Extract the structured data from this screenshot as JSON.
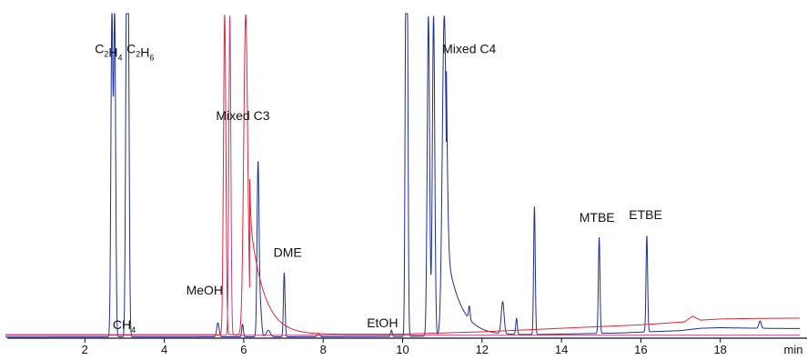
{
  "chart_data": {
    "type": "line",
    "title": "",
    "xlabel": "",
    "x_unit": "min",
    "ylabel": "",
    "xlim": [
      0,
      20
    ],
    "x_ticks": [
      2,
      4,
      6,
      8,
      10,
      12,
      14,
      16,
      18
    ],
    "grid": false,
    "legend": "none",
    "colors": {
      "trace_blue": "#1f2f8f",
      "trace_red": "#e0283a",
      "trace_magenta": "#c0407a",
      "axis": "#111111"
    },
    "series": [
      {
        "color": "#1f2f8f",
        "baseline": [
          [
            0.0,
            0.4
          ],
          [
            5.0,
            0.45
          ],
          [
            8.0,
            0.5
          ],
          [
            10.0,
            0.6
          ],
          [
            12.0,
            0.9
          ],
          [
            14.0,
            1.4
          ],
          [
            15.5,
            1.8
          ],
          [
            16.0,
            2.1
          ],
          [
            17.0,
            2.6
          ],
          [
            17.5,
            3.4
          ],
          [
            18.0,
            3.6
          ],
          [
            19.0,
            3.4
          ],
          [
            20.0,
            3.3
          ]
        ],
        "peaks": [
          {
            "t": 2.68,
            "h": 110,
            "w": 0.025
          },
          {
            "t": 2.75,
            "h": 110,
            "w": 0.025
          },
          {
            "t": 3.05,
            "h": 110,
            "w": 0.025
          },
          {
            "t": 3.09,
            "h": 110,
            "w": 0.025
          },
          {
            "t": 5.35,
            "h": 4.8,
            "w": 0.03
          },
          {
            "t": 5.97,
            "h": 4.3,
            "w": 0.02
          },
          {
            "t": 6.36,
            "h": 59,
            "w": 0.025
          },
          {
            "t": 6.42,
            "h": 10,
            "w": 0.03
          },
          {
            "t": 6.62,
            "h": 2.2,
            "w": 0.05
          },
          {
            "t": 7.02,
            "h": 22,
            "w": 0.02
          },
          {
            "t": 7.88,
            "h": 1.2,
            "w": 0.03
          },
          {
            "t": 9.72,
            "h": 2.2,
            "w": 0.02
          },
          {
            "t": 10.08,
            "h": 110,
            "w": 0.02
          },
          {
            "t": 10.12,
            "h": 110,
            "w": 0.02
          },
          {
            "t": 10.65,
            "h": 110,
            "w": 0.03
          },
          {
            "t": 10.78,
            "h": 110,
            "w": 0.03
          },
          {
            "t": 11.05,
            "h": 110,
            "w": 0.05
          },
          {
            "t": 11.68,
            "h": 4.5,
            "w": 0.02
          },
          {
            "t": 12.52,
            "h": 11,
            "w": 0.035
          },
          {
            "t": 12.87,
            "h": 5.5,
            "w": 0.02
          },
          {
            "t": 13.32,
            "h": 44,
            "w": 0.02
          },
          {
            "t": 14.95,
            "h": 33,
            "w": 0.02
          },
          {
            "t": 16.15,
            "h": 33,
            "w": 0.02
          },
          {
            "t": 19.0,
            "h": 2.5,
            "w": 0.03
          }
        ],
        "tails": [
          {
            "t": 11.1,
            "h": 30,
            "tau": 0.35
          }
        ]
      },
      {
        "color": "#e0283a",
        "baseline": [
          [
            0.0,
            1.2
          ],
          [
            6.0,
            1.2
          ],
          [
            10.0,
            1.4
          ],
          [
            12.0,
            2.2
          ],
          [
            14.0,
            3.4
          ],
          [
            16.0,
            4.6
          ],
          [
            17.1,
            5.6
          ],
          [
            17.3,
            7.6
          ],
          [
            17.5,
            6.2
          ],
          [
            18.0,
            6.6
          ],
          [
            19.0,
            6.8
          ],
          [
            20.0,
            6.9
          ]
        ],
        "peaks": [
          {
            "t": 5.52,
            "h": 110,
            "w": 0.03
          },
          {
            "t": 6.05,
            "h": 110,
            "w": 0.05
          }
        ],
        "tails": [
          {
            "t": 6.15,
            "h": 40,
            "tau": 0.35
          }
        ]
      },
      {
        "color": "#c0407a",
        "baseline": [
          [
            0.0,
            1.0
          ],
          [
            20.0,
            1.0
          ]
        ],
        "peaks": [
          {
            "t": 5.65,
            "h": 110,
            "w": 0.025
          }
        ],
        "tails": []
      }
    ],
    "annotations": [
      {
        "text": "CH",
        "sub": "4",
        "t": 2.7,
        "y": 3.2
      },
      {
        "text": "C",
        "sub": "2",
        "text2": "H",
        "sub2": "4",
        "t": 2.25,
        "y": 98
      },
      {
        "text": "C",
        "sub": "2",
        "text2": "H",
        "sub2": "6",
        "t": 3.05,
        "y": 98
      },
      {
        "text": "Mixed C3",
        "t": 5.3,
        "y": 75
      },
      {
        "text": "MeOH",
        "t": 4.55,
        "y": 15
      },
      {
        "text": "DME",
        "t": 6.75,
        "y": 28
      },
      {
        "text": "EtOH",
        "t": 9.1,
        "y": 3.8
      },
      {
        "text": "Mixed C4",
        "t": 11.0,
        "y": 98
      },
      {
        "text": "MTBE",
        "t": 14.45,
        "y": 40
      },
      {
        "text": "ETBE",
        "t": 15.7,
        "y": 41
      }
    ]
  }
}
